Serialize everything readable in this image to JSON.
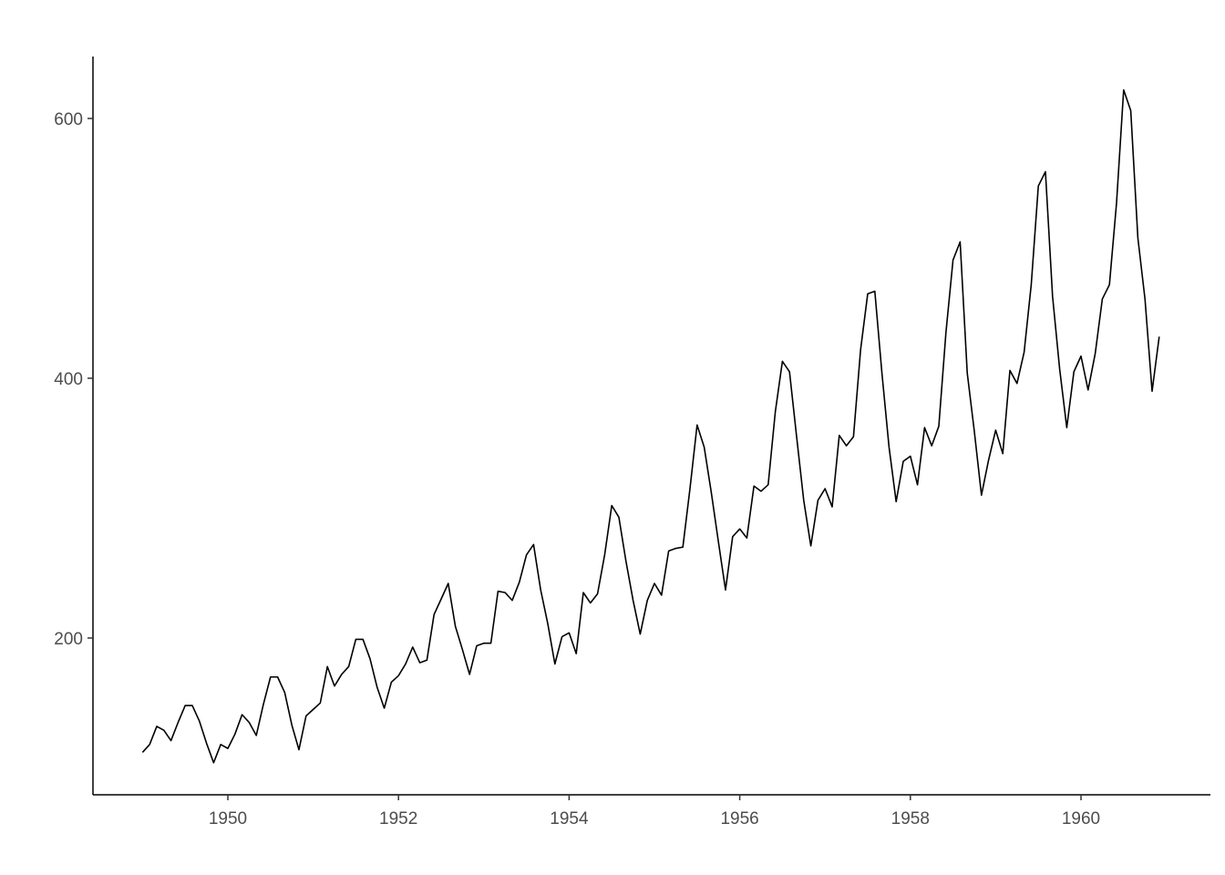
{
  "chart_data": {
    "type": "line",
    "x": [
      1949,
      1949.0833,
      1949.1667,
      1949.25,
      1949.3333,
      1949.4167,
      1949.5,
      1949.5833,
      1949.6667,
      1949.75,
      1949.8333,
      1949.9167,
      1950,
      1950.0833,
      1950.1667,
      1950.25,
      1950.3333,
      1950.4167,
      1950.5,
      1950.5833,
      1950.6667,
      1950.75,
      1950.8333,
      1950.9167,
      1951,
      1951.0833,
      1951.1667,
      1951.25,
      1951.3333,
      1951.4167,
      1951.5,
      1951.5833,
      1951.6667,
      1951.75,
      1951.8333,
      1951.9167,
      1952,
      1952.0833,
      1952.1667,
      1952.25,
      1952.3333,
      1952.4167,
      1952.5,
      1952.5833,
      1952.6667,
      1952.75,
      1952.8333,
      1952.9167,
      1953,
      1953.0833,
      1953.1667,
      1953.25,
      1953.3333,
      1953.4167,
      1953.5,
      1953.5833,
      1953.6667,
      1953.75,
      1953.8333,
      1953.9167,
      1954,
      1954.0833,
      1954.1667,
      1954.25,
      1954.3333,
      1954.4167,
      1954.5,
      1954.5833,
      1954.6667,
      1954.75,
      1954.8333,
      1954.9167,
      1955,
      1955.0833,
      1955.1667,
      1955.25,
      1955.3333,
      1955.4167,
      1955.5,
      1955.5833,
      1955.6667,
      1955.75,
      1955.8333,
      1955.9167,
      1956,
      1956.0833,
      1956.1667,
      1956.25,
      1956.3333,
      1956.4167,
      1956.5,
      1956.5833,
      1956.6667,
      1956.75,
      1956.8333,
      1956.9167,
      1957,
      1957.0833,
      1957.1667,
      1957.25,
      1957.3333,
      1957.4167,
      1957.5,
      1957.5833,
      1957.6667,
      1957.75,
      1957.8333,
      1957.9167,
      1958,
      1958.0833,
      1958.1667,
      1958.25,
      1958.3333,
      1958.4167,
      1958.5,
      1958.5833,
      1958.6667,
      1958.75,
      1958.8333,
      1958.9167,
      1959,
      1959.0833,
      1959.1667,
      1959.25,
      1959.3333,
      1959.4167,
      1959.5,
      1959.5833,
      1959.6667,
      1959.75,
      1959.8333,
      1959.9167,
      1960,
      1960.0833,
      1960.1667,
      1960.25,
      1960.3333,
      1960.4167,
      1960.5,
      1960.5833,
      1960.6667,
      1960.75,
      1960.8333,
      1960.9167
    ],
    "values": [
      112,
      118,
      132,
      129,
      121,
      135,
      148,
      148,
      136,
      119,
      104,
      118,
      115,
      126,
      141,
      135,
      125,
      149,
      170,
      170,
      158,
      133,
      114,
      140,
      145,
      150,
      178,
      163,
      172,
      178,
      199,
      199,
      184,
      162,
      146,
      166,
      171,
      180,
      193,
      181,
      183,
      218,
      230,
      242,
      209,
      191,
      172,
      194,
      196,
      196,
      236,
      235,
      229,
      243,
      264,
      272,
      237,
      211,
      180,
      201,
      204,
      188,
      235,
      227,
      234,
      264,
      302,
      293,
      259,
      229,
      203,
      229,
      242,
      233,
      267,
      269,
      270,
      315,
      364,
      347,
      312,
      274,
      237,
      278,
      284,
      277,
      317,
      313,
      318,
      374,
      413,
      405,
      355,
      306,
      271,
      306,
      315,
      301,
      356,
      348,
      355,
      422,
      465,
      467,
      404,
      347,
      305,
      336,
      340,
      318,
      362,
      348,
      363,
      435,
      491,
      505,
      404,
      359,
      310,
      337,
      360,
      342,
      406,
      396,
      420,
      472,
      548,
      559,
      463,
      407,
      362,
      405,
      417,
      391,
      419,
      461,
      472,
      535,
      622,
      606,
      508,
      461,
      390,
      432
    ],
    "color": "#000000",
    "xlim": [
      1948.419,
      1961.517
    ],
    "xticks": [
      1950,
      1952,
      1954,
      1956,
      1958,
      1960
    ],
    "ylim": [
      79.3,
      647.7
    ],
    "yticks": [
      200,
      400,
      600
    ]
  }
}
